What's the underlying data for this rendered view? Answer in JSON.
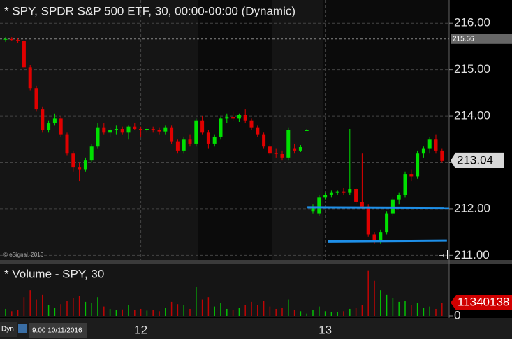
{
  "chart_data": [
    {
      "type": "candlestick",
      "title": "* SPY, SPDR S&P 500 ETF, 30, 00:00-00:00 (Dynamic)",
      "open": [
        215.65,
        215.66,
        215.64,
        215.62,
        215.05,
        214.6,
        214.15,
        213.7,
        213.85,
        213.95,
        213.6,
        213.2,
        212.9,
        212.85,
        213.05,
        213.35,
        213.75,
        213.65,
        213.7,
        213.72,
        213.65,
        213.78,
        213.72,
        213.7,
        213.72,
        213.7,
        213.66,
        213.75,
        213.45,
        213.25,
        213.5,
        213.4,
        213.9,
        213.65,
        213.4,
        213.55,
        213.95,
        213.97,
        213.95,
        214.02,
        213.9,
        213.75,
        213.6,
        213.35,
        213.2,
        213.18,
        213.1,
        213.3,
        213.25,
        213.7,
        211.95,
        211.9,
        212.25,
        212.3,
        212.35,
        212.38,
        212.35,
        212.42,
        212.15,
        212.05,
        211.45,
        211.3,
        211.5,
        211.9,
        212.2,
        212.3,
        212.75,
        212.7,
        213.2,
        213.3,
        213.5,
        213.25
      ],
      "high": [
        215.7,
        215.7,
        215.68,
        215.65,
        215.1,
        214.65,
        214.2,
        213.9,
        214.05,
        214.0,
        213.65,
        213.25,
        213.0,
        213.1,
        213.4,
        213.85,
        213.85,
        213.75,
        213.8,
        213.78,
        213.8,
        213.85,
        213.78,
        213.75,
        213.78,
        213.75,
        213.8,
        213.8,
        213.5,
        213.55,
        213.6,
        213.95,
        214.0,
        213.7,
        213.6,
        213.98,
        214.05,
        214.1,
        214.05,
        214.15,
        213.95,
        213.8,
        213.65,
        213.4,
        213.3,
        213.25,
        213.75,
        213.4,
        213.38,
        213.72,
        212.1,
        212.3,
        212.35,
        212.4,
        212.4,
        212.45,
        213.72,
        212.45,
        213.2,
        212.1,
        211.5,
        211.55,
        211.95,
        212.25,
        212.35,
        212.8,
        212.85,
        213.25,
        213.35,
        213.55,
        213.6,
        213.3
      ],
      "low": [
        215.6,
        215.62,
        215.58,
        215.0,
        214.55,
        214.1,
        213.65,
        213.65,
        213.8,
        213.55,
        213.15,
        212.8,
        212.6,
        212.8,
        213.0,
        213.3,
        213.6,
        213.55,
        213.6,
        213.6,
        213.5,
        213.7,
        213.55,
        213.65,
        213.65,
        213.6,
        213.6,
        213.4,
        213.2,
        213.2,
        213.35,
        213.35,
        213.6,
        213.3,
        213.35,
        213.5,
        213.85,
        213.9,
        213.88,
        213.85,
        213.7,
        213.55,
        213.3,
        213.15,
        213.1,
        213.05,
        213.05,
        213.2,
        213.22,
        213.68,
        211.9,
        211.85,
        212.2,
        212.25,
        212.3,
        212.3,
        212.3,
        212.1,
        212.0,
        211.4,
        211.25,
        211.25,
        211.45,
        211.85,
        212.1,
        212.25,
        212.6,
        212.65,
        213.1,
        213.2,
        213.2,
        213.0
      ],
      "close": [
        215.66,
        215.64,
        215.62,
        215.05,
        214.6,
        214.15,
        213.7,
        213.85,
        213.95,
        213.6,
        213.2,
        212.9,
        212.85,
        213.05,
        213.35,
        213.75,
        213.65,
        213.7,
        213.72,
        213.65,
        213.78,
        213.72,
        213.7,
        213.72,
        213.7,
        213.66,
        213.75,
        213.45,
        213.25,
        213.5,
        213.4,
        213.9,
        213.65,
        213.4,
        213.55,
        213.95,
        213.97,
        213.95,
        214.02,
        213.9,
        213.75,
        213.6,
        213.35,
        213.2,
        213.18,
        213.1,
        213.7,
        213.25,
        213.33,
        213.7,
        212.05,
        212.25,
        212.3,
        212.35,
        212.38,
        212.35,
        212.42,
        212.15,
        212.05,
        211.45,
        211.3,
        211.5,
        211.9,
        212.2,
        212.3,
        212.75,
        212.7,
        213.2,
        213.3,
        213.5,
        213.25,
        213.04
      ],
      "up_color": "#00e000",
      "down_color": "#e00000",
      "ylim": [
        210.9,
        216.5
      ],
      "yticks": [
        {
          "value": 211,
          "label": "211.00"
        },
        {
          "value": 212,
          "label": "212.00"
        },
        {
          "value": 213,
          "label": "213.00"
        },
        {
          "value": 214,
          "label": "214.00"
        },
        {
          "value": 215,
          "label": "215.00"
        },
        {
          "value": 216,
          "label": "216.00"
        }
      ],
      "xticks": [
        {
          "value": 22,
          "label": "12"
        },
        {
          "value": 52,
          "label": "13"
        }
      ],
      "grid": true,
      "ref_line": 215.66,
      "lines": [
        {
          "color": "#1e8fe8",
          "x": [
            49.1,
            72.2
          ],
          "values": [
            212.03,
            212.02
          ]
        },
        {
          "color": "#1e8fe8",
          "x": [
            52.5,
            71.8
          ],
          "values": [
            211.3,
            211.32
          ]
        }
      ]
    },
    {
      "type": "bar",
      "title": "* Volume - SPY, 30",
      "values": [
        6000000,
        4000000,
        5000000,
        16000000,
        22000000,
        14000000,
        18000000,
        9000000,
        7000000,
        10000000,
        13000000,
        15000000,
        17000000,
        12000000,
        11000000,
        16000000,
        8000000,
        6000000,
        5000000,
        5500000,
        9000000,
        5000000,
        6000000,
        4500000,
        5000000,
        4000000,
        7000000,
        12000000,
        10000000,
        9000000,
        6000000,
        25000000,
        14000000,
        16000000,
        8000000,
        11000000,
        6000000,
        5000000,
        7000000,
        9000000,
        12000000,
        9000000,
        13000000,
        8000000,
        6000000,
        7000000,
        14000000,
        5000000,
        4000000,
        2000000,
        5000000,
        8000000,
        4000000,
        3500000,
        3000000,
        4000000,
        6000000,
        7000000,
        9000000,
        39000000,
        30000000,
        22000000,
        18000000,
        15000000,
        12000000,
        13000000,
        9000000,
        11000000,
        7000000,
        8000000,
        6000000,
        11340138
      ],
      "ylim": [
        0,
        40000000
      ],
      "yticks": [
        0
      ]
    }
  ],
  "footer": {
    "watermark": "© eSignal, 2016",
    "mode": "Dyn",
    "start": "9:00 10/11/2016"
  }
}
